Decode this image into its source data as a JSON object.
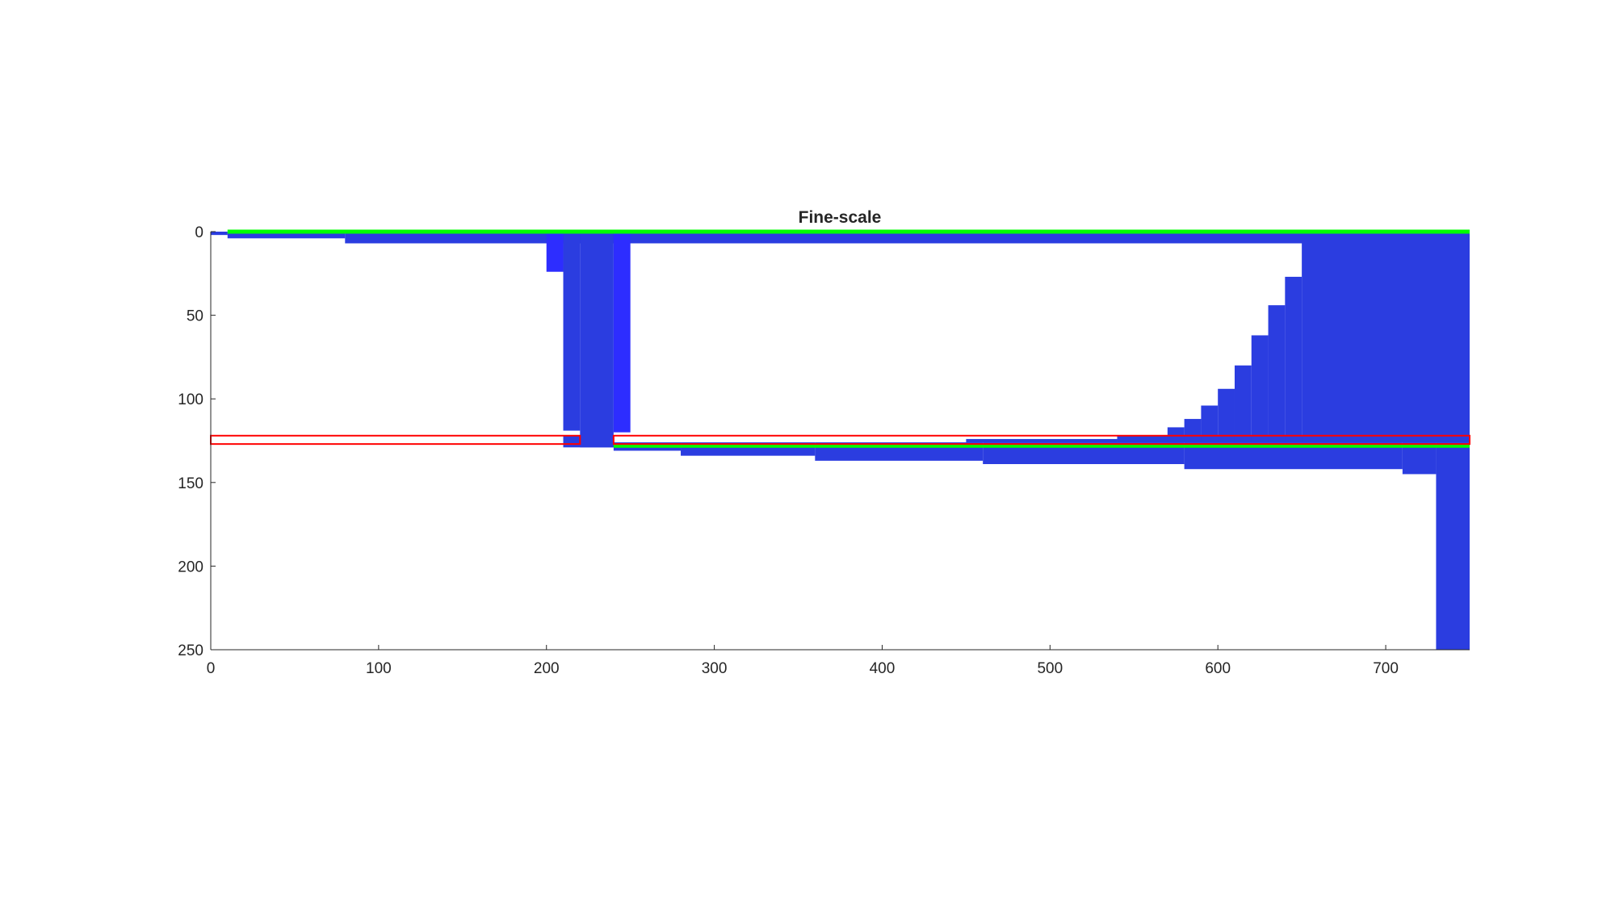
{
  "chart_data": {
    "type": "area",
    "title": "Fine-scale",
    "xlabel": "",
    "ylabel": "",
    "xlim": [
      0,
      750
    ],
    "ylim": [
      0,
      250
    ],
    "y_reversed": true,
    "grid": false,
    "x_ticks": [
      0,
      100,
      200,
      300,
      400,
      500,
      600,
      700
    ],
    "y_ticks": [
      0,
      50,
      100,
      150,
      200,
      250
    ],
    "colors": {
      "fill": "#2b3de0",
      "fill_bright": "#2d2dff",
      "green_line": "#00ff00",
      "red_box": "#ff0000"
    },
    "regions": [
      {
        "x0": 0,
        "x1": 10,
        "y0": 0,
        "y1": 2
      },
      {
        "x0": 10,
        "x1": 80,
        "y0": 0,
        "y1": 4
      },
      {
        "x0": 80,
        "x1": 750,
        "y0": 0,
        "y1": 7
      },
      {
        "x0": 200,
        "x1": 210,
        "y0": 0,
        "y1": 24,
        "bright": true
      },
      {
        "x0": 210,
        "x1": 220,
        "y0": 0,
        "y1": 119
      },
      {
        "x0": 210,
        "x1": 240,
        "y0": 122,
        "y1": 129
      },
      {
        "x0": 220,
        "x1": 240,
        "y0": 0,
        "y1": 129
      },
      {
        "x0": 240,
        "x1": 250,
        "y0": 0,
        "y1": 120,
        "bright": true
      },
      {
        "x0": 240,
        "x1": 280,
        "y0": 126,
        "y1": 131
      },
      {
        "x0": 280,
        "x1": 360,
        "y0": 126,
        "y1": 134
      },
      {
        "x0": 360,
        "x1": 460,
        "y0": 126,
        "y1": 137
      },
      {
        "x0": 450,
        "x1": 540,
        "y0": 124,
        "y1": 126
      },
      {
        "x0": 460,
        "x1": 580,
        "y0": 126,
        "y1": 139
      },
      {
        "x0": 540,
        "x1": 750,
        "y0": 122,
        "y1": 126
      },
      {
        "x0": 570,
        "x1": 580,
        "y0": 117,
        "y1": 126
      },
      {
        "x0": 580,
        "x1": 710,
        "y0": 126,
        "y1": 142
      },
      {
        "x0": 580,
        "x1": 590,
        "y0": 112,
        "y1": 126
      },
      {
        "x0": 590,
        "x1": 600,
        "y0": 104,
        "y1": 126
      },
      {
        "x0": 600,
        "x1": 610,
        "y0": 94,
        "y1": 126
      },
      {
        "x0": 610,
        "x1": 620,
        "y0": 80,
        "y1": 126
      },
      {
        "x0": 620,
        "x1": 630,
        "y0": 62,
        "y1": 126
      },
      {
        "x0": 630,
        "x1": 640,
        "y0": 44,
        "y1": 126
      },
      {
        "x0": 640,
        "x1": 650,
        "y0": 27,
        "y1": 126
      },
      {
        "x0": 650,
        "x1": 750,
        "y0": 7,
        "y1": 126
      },
      {
        "x0": 710,
        "x1": 730,
        "y0": 126,
        "y1": 145
      },
      {
        "x0": 730,
        "x1": 750,
        "y0": 126,
        "y1": 250
      }
    ],
    "green_lines": [
      {
        "x0": 10,
        "x1": 750,
        "y": 0
      },
      {
        "x0": 240,
        "x1": 750,
        "y": 128
      }
    ],
    "red_boxes": [
      {
        "x0": 0,
        "x1": 220,
        "y0": 122,
        "y1": 127
      },
      {
        "x0": 240,
        "x1": 750,
        "y0": 122,
        "y1": 127
      }
    ]
  }
}
